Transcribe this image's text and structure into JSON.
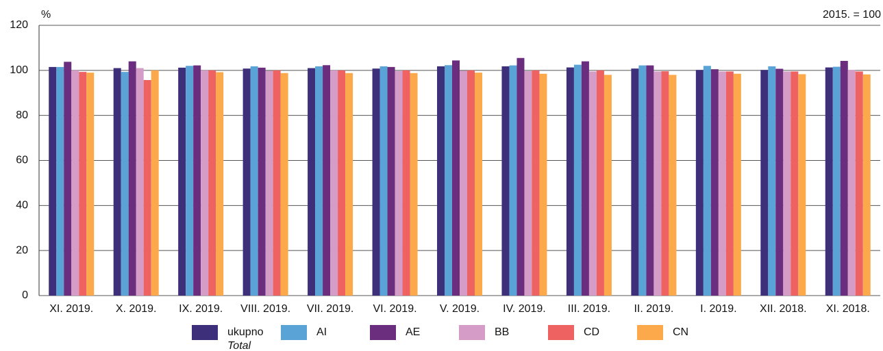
{
  "chart_data": {
    "type": "bar",
    "y_unit": "%",
    "note": "2015. = 100",
    "categories": [
      "XI. 2019.",
      "X. 2019.",
      "IX. 2019.",
      "VIII. 2019.",
      "VII. 2019.",
      "VI. 2019.",
      "V. 2019.",
      "IV. 2019.",
      "III. 2019.",
      "II. 2019.",
      "I. 2019.",
      "XII. 2018.",
      "XI. 2018."
    ],
    "series": [
      {
        "name": "ukupno",
        "color": "#3d2f7a",
        "values": [
          101.5,
          101,
          101.2,
          100.8,
          101,
          100.8,
          101.8,
          101.8,
          101.3,
          100.8,
          100.2,
          100.2,
          101.3
        ]
      },
      {
        "name": "AI",
        "color": "#5aa3d6",
        "values": [
          101.5,
          99.3,
          102,
          101.8,
          101.8,
          101.8,
          102.3,
          102.2,
          102.5,
          102.2,
          102,
          101.8,
          101.6
        ]
      },
      {
        "name": "AE",
        "color": "#6b2d7e",
        "values": [
          103.8,
          104,
          102.2,
          101.2,
          102.3,
          101.5,
          104.4,
          105.5,
          104,
          102.2,
          100.5,
          100.7,
          104.2
        ]
      },
      {
        "name": "BB",
        "color": "#d49cc6",
        "values": [
          100,
          101,
          100,
          99.8,
          100,
          99.7,
          99.8,
          99.7,
          99.5,
          99.5,
          99.5,
          99.5,
          100.2
        ]
      },
      {
        "name": "CD",
        "color": "#ee6262",
        "values": [
          99.3,
          95.7,
          100,
          100,
          100,
          100,
          100,
          100,
          100,
          99.6,
          99.5,
          99.5,
          99.5
        ]
      },
      {
        "name": "CN",
        "color": "#fba94a",
        "values": [
          99,
          100,
          99.2,
          98.8,
          98.8,
          98.8,
          99,
          98.5,
          98,
          98,
          98.5,
          98.3,
          98.2
        ]
      }
    ],
    "legend_note": "Total",
    "ylim": [
      0,
      120
    ],
    "yticks": [
      0,
      20,
      40,
      60,
      80,
      100,
      120
    ],
    "grid": true
  }
}
